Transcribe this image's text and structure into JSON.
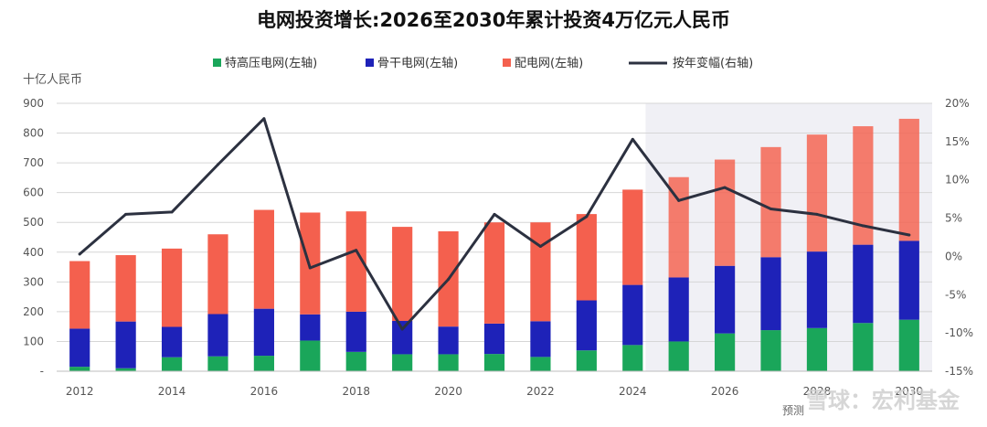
{
  "chart_data": {
    "type": "bar",
    "title": "电网投资增长:2026至2030年累计投资4万亿元人民币",
    "y_unit_label": "十亿人民币",
    "categories": [
      "2012",
      "2013",
      "2014",
      "2015",
      "2016",
      "2017",
      "2018",
      "2019",
      "2020",
      "2021",
      "2022",
      "2023",
      "2024",
      "2025",
      "2026",
      "2027",
      "2028",
      "2029",
      "2030"
    ],
    "x_tick_labels": [
      "2012",
      "2014",
      "2016",
      "2018",
      "2020",
      "2022",
      "2024",
      "2026",
      "2028",
      "2030"
    ],
    "series": [
      {
        "name": "特高压电网(左轴)",
        "color": "#1aa65a",
        "axis": "left",
        "values": [
          15,
          10,
          47,
          50,
          52,
          103,
          65,
          57,
          57,
          58,
          48,
          70,
          88,
          100,
          127,
          138,
          145,
          162,
          173
        ]
      },
      {
        "name": "骨干电网(左轴)",
        "color": "#1e22b8",
        "axis": "left",
        "values": [
          128,
          157,
          102,
          142,
          158,
          88,
          135,
          112,
          93,
          102,
          120,
          168,
          202,
          215,
          227,
          245,
          257,
          263,
          265
        ]
      },
      {
        "name": "配电网(左轴)",
        "color": "#f4604e",
        "axis": "left",
        "values": [
          227,
          223,
          263,
          268,
          332,
          342,
          337,
          316,
          320,
          340,
          332,
          290,
          320,
          337,
          357,
          370,
          393,
          398,
          410
        ]
      },
      {
        "name": "按年变幅(右轴)",
        "type": "line",
        "color": "#2c3140",
        "axis": "right",
        "values": [
          0.3,
          5.5,
          5.8,
          12,
          18,
          -1.5,
          0.8,
          -9.5,
          -3,
          5.5,
          1.3,
          5.2,
          15.3,
          7.3,
          9,
          6.2,
          5.5,
          4,
          2.8
        ]
      }
    ],
    "ylim_left": [
      0,
      900
    ],
    "yticks_left": [
      "-",
      "100",
      "200",
      "300",
      "400",
      "500",
      "600",
      "700",
      "800",
      "900"
    ],
    "ylim_right": [
      -15,
      20
    ],
    "yticks_right": [
      "-15%",
      "-10%",
      "-5%",
      "0%",
      "5%",
      "10%",
      "15%",
      "20%"
    ],
    "forecast_label": "预测",
    "forecast_start": "2025",
    "forecast_shade_color": "#f0f0f5",
    "grid": "horizontal",
    "legend_position": "top",
    "watermark": "雪球：宏利基金"
  }
}
